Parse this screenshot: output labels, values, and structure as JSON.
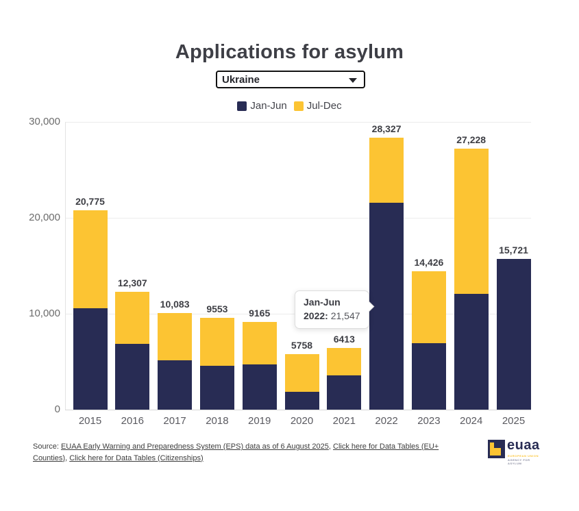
{
  "title": "Applications for asylum",
  "dropdown": {
    "value": "Ukraine"
  },
  "tooltip": {
    "line1": "Jan-Jun",
    "line2_bold": "2022:",
    "line2_value": " 21,547"
  },
  "source": {
    "prefix": "Source: ",
    "link1": "EUAA Early Warning and Preparedness System (EPS) data as of 6 August 2025",
    "sep1": ", ",
    "link2": "Click here for Data Tables (EU+ Counties)",
    "sep2": ", ",
    "link3": "Click here for Data Tables (Citizenships)"
  },
  "logo": {
    "word": "euaa",
    "subtitle1": "EUROPEAN UNION",
    "subtitle2": "AGENCY FOR ASYLUM"
  },
  "chart_data": {
    "type": "bar",
    "stacked": true,
    "title": "Applications for asylum",
    "categories": [
      "2015",
      "2016",
      "2017",
      "2018",
      "2019",
      "2020",
      "2021",
      "2022",
      "2023",
      "2024",
      "2025"
    ],
    "series": [
      {
        "name": "Jan-Jun",
        "color": "#282c54",
        "values": [
          10550,
          6850,
          5150,
          4550,
          4750,
          1850,
          3550,
          21547,
          6950,
          12050,
          15721
        ]
      },
      {
        "name": "Jul-Dec",
        "color": "#fcc433",
        "values": [
          10225,
          5457,
          4933,
          5003,
          4415,
          3908,
          2863,
          6780,
          7476,
          15178,
          0
        ]
      }
    ],
    "totals": [
      20775,
      12307,
      10083,
      9553,
      9165,
      5758,
      6413,
      28327,
      14426,
      27228,
      15721
    ],
    "total_labels": [
      "20,775",
      "12,307",
      "10,083",
      "9553",
      "9165",
      "5758",
      "6413",
      "28,327",
      "14,426",
      "27,228",
      "15,721"
    ],
    "yticks": [
      {
        "value": 0,
        "label": "0"
      },
      {
        "value": 10000,
        "label": "10,000"
      },
      {
        "value": 20000,
        "label": "20,000"
      },
      {
        "value": 30000,
        "label": "30,000"
      }
    ],
    "ylim": [
      0,
      30000
    ],
    "grid": true,
    "legend_position": "top"
  }
}
